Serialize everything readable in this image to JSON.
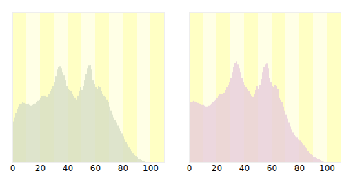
{
  "chart_data": [
    {
      "type": "bar",
      "x": [
        0,
        1,
        2,
        3,
        4,
        5,
        6,
        7,
        8,
        9,
        10,
        11,
        12,
        13,
        14,
        15,
        16,
        17,
        18,
        19,
        20,
        21,
        22,
        23,
        24,
        25,
        26,
        27,
        28,
        29,
        30,
        31,
        32,
        33,
        34,
        35,
        36,
        37,
        38,
        39,
        40,
        41,
        42,
        43,
        44,
        45,
        46,
        47,
        48,
        49,
        50,
        51,
        52,
        53,
        54,
        55,
        56,
        57,
        58,
        59,
        60,
        61,
        62,
        63,
        64,
        65,
        66,
        67,
        68,
        69,
        70,
        71,
        72,
        73,
        74,
        75,
        76,
        77,
        78,
        79,
        80,
        81,
        82,
        83,
        84,
        85,
        86,
        87,
        88,
        89,
        90,
        91,
        92,
        93,
        94,
        95,
        96,
        97,
        98,
        99,
        100
      ],
      "values": [
        60,
        66,
        72,
        78,
        82,
        85,
        86,
        88,
        87,
        86,
        85,
        86,
        84,
        83,
        84,
        85,
        86,
        88,
        90,
        92,
        95,
        97,
        98,
        98,
        96,
        96,
        100,
        104,
        108,
        112,
        118,
        126,
        136,
        140,
        141,
        138,
        132,
        128,
        120,
        112,
        108,
        106,
        105,
        100,
        98,
        95,
        92,
        98,
        105,
        110,
        106,
        112,
        120,
        130,
        138,
        142,
        143,
        136,
        120,
        115,
        110,
        108,
        112,
        110,
        104,
        100,
        98,
        96,
        92,
        88,
        82,
        76,
        70,
        66,
        62,
        58,
        54,
        50,
        46,
        42,
        38,
        34,
        30,
        26,
        22,
        19,
        16,
        13,
        11,
        9,
        7,
        5,
        4,
        3,
        2,
        2,
        1,
        1,
        1,
        0.5,
        0.5
      ],
      "color": "#d3dcc4",
      "xlim": [
        0,
        110
      ],
      "xticks": [
        0,
        20,
        40,
        60,
        80,
        100
      ],
      "ylim": [
        0,
        220
      ],
      "tick_labels": "x"
    },
    {
      "type": "bar",
      "x": [
        0,
        1,
        2,
        3,
        4,
        5,
        6,
        7,
        8,
        9,
        10,
        11,
        12,
        13,
        14,
        15,
        16,
        17,
        18,
        19,
        20,
        21,
        22,
        23,
        24,
        25,
        26,
        27,
        28,
        29,
        30,
        31,
        32,
        33,
        34,
        35,
        36,
        37,
        38,
        39,
        40,
        41,
        42,
        43,
        44,
        45,
        46,
        47,
        48,
        49,
        50,
        51,
        52,
        53,
        54,
        55,
        56,
        57,
        58,
        59,
        60,
        61,
        62,
        63,
        64,
        65,
        66,
        67,
        68,
        69,
        70,
        71,
        72,
        73,
        74,
        75,
        76,
        77,
        78,
        79,
        80,
        81,
        82,
        83,
        84,
        85,
        86,
        87,
        88,
        89,
        90,
        91,
        92,
        93,
        94,
        95,
        96,
        97,
        98,
        99,
        100
      ],
      "values": [
        88,
        88,
        89,
        90,
        89,
        88,
        87,
        86,
        85,
        84,
        84,
        83,
        82,
        82,
        83,
        84,
        86,
        88,
        90,
        92,
        95,
        98,
        100,
        100,
        100,
        102,
        106,
        110,
        114,
        118,
        124,
        132,
        140,
        146,
        148,
        144,
        138,
        132,
        124,
        118,
        114,
        110,
        108,
        104,
        100,
        98,
        96,
        100,
        106,
        112,
        108,
        114,
        122,
        132,
        140,
        144,
        145,
        138,
        124,
        118,
        112,
        110,
        114,
        112,
        108,
        95,
        92,
        88,
        82,
        76,
        70,
        64,
        58,
        52,
        48,
        44,
        40,
        38,
        36,
        34,
        32,
        30,
        28,
        25,
        22,
        20,
        17,
        14,
        12,
        10,
        8,
        7,
        6,
        5,
        4,
        3,
        2,
        1.5,
        1,
        1,
        0.5
      ],
      "color": "#e6cadc",
      "xlim": [
        0,
        110
      ],
      "xticks": [
        0,
        20,
        40,
        60,
        80,
        100
      ],
      "ylim": [
        0,
        220
      ],
      "tick_labels": "x"
    }
  ]
}
